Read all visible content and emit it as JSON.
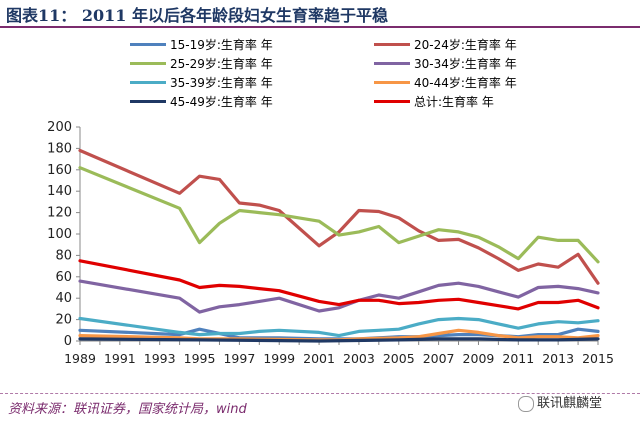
{
  "header": {
    "title": "图表11：  2011 年以后各年龄段妇女生育率趋于平稳"
  },
  "footer": {
    "source": "资料来源：联讯证券，国家统计局，wind",
    "watermark": "联讯麒麟堂"
  },
  "chart_data": {
    "type": "line",
    "x": [
      1989,
      1990,
      1991,
      1992,
      1993,
      1994,
      1995,
      1996,
      1997,
      1998,
      1999,
      2000,
      2001,
      2002,
      2003,
      2004,
      2005,
      2006,
      2007,
      2008,
      2009,
      2010,
      2011,
      2012,
      2013,
      2014,
      2015
    ],
    "xticks": [
      1989,
      1991,
      1993,
      1995,
      1997,
      1999,
      2001,
      2003,
      2005,
      2007,
      2009,
      2011,
      2013,
      2015
    ],
    "ylim": [
      0,
      200
    ],
    "yticks": [
      0,
      20,
      40,
      60,
      80,
      100,
      120,
      140,
      160,
      180,
      200
    ],
    "grid": false,
    "legend_position": "top",
    "series": [
      {
        "name": "15-19岁:生育率 年",
        "color": "#4f81bd",
        "points": [
          [
            1989,
            10
          ],
          [
            1994,
            6
          ],
          [
            1995,
            11
          ],
          [
            1996,
            7
          ],
          [
            1997,
            3
          ],
          [
            1999,
            3
          ],
          [
            2001,
            2
          ],
          [
            2002,
            2
          ],
          [
            2003,
            2
          ],
          [
            2005,
            4
          ],
          [
            2006,
            4
          ],
          [
            2007,
            5
          ],
          [
            2008,
            6
          ],
          [
            2009,
            6
          ],
          [
            2010,
            5
          ],
          [
            2011,
            4
          ],
          [
            2012,
            6
          ],
          [
            2013,
            6
          ],
          [
            2014,
            11
          ],
          [
            2015,
            9
          ]
        ]
      },
      {
        "name": "20-24岁:生育率 年",
        "color": "#c0504d",
        "points": [
          [
            1989,
            178
          ],
          [
            1994,
            138
          ],
          [
            1995,
            154
          ],
          [
            1996,
            151
          ],
          [
            1997,
            129
          ],
          [
            1998,
            127
          ],
          [
            1999,
            122
          ],
          [
            2001,
            89
          ],
          [
            2002,
            102
          ],
          [
            2003,
            122
          ],
          [
            2004,
            121
          ],
          [
            2005,
            115
          ],
          [
            2006,
            103
          ],
          [
            2007,
            94
          ],
          [
            2008,
            95
          ],
          [
            2009,
            87
          ],
          [
            2010,
            77
          ],
          [
            2011,
            66
          ],
          [
            2012,
            72
          ],
          [
            2013,
            69
          ],
          [
            2014,
            81
          ],
          [
            2015,
            54
          ]
        ]
      },
      {
        "name": "25-29岁:生育率 年",
        "color": "#9bbb59",
        "points": [
          [
            1989,
            162
          ],
          [
            1994,
            124
          ],
          [
            1995,
            92
          ],
          [
            1996,
            110
          ],
          [
            1997,
            122
          ],
          [
            1998,
            120
          ],
          [
            1999,
            118
          ],
          [
            2001,
            112
          ],
          [
            2002,
            99
          ],
          [
            2003,
            102
          ],
          [
            2004,
            107
          ],
          [
            2005,
            92
          ],
          [
            2006,
            98
          ],
          [
            2007,
            104
          ],
          [
            2008,
            102
          ],
          [
            2009,
            97
          ],
          [
            2010,
            88
          ],
          [
            2011,
            77
          ],
          [
            2012,
            97
          ],
          [
            2013,
            94
          ],
          [
            2014,
            94
          ],
          [
            2015,
            74
          ]
        ]
      },
      {
        "name": "30-34岁:生育率 年",
        "color": "#8064a2",
        "points": [
          [
            1989,
            56
          ],
          [
            1994,
            40
          ],
          [
            1995,
            27
          ],
          [
            1996,
            32
          ],
          [
            1997,
            34
          ],
          [
            1998,
            37
          ],
          [
            1999,
            40
          ],
          [
            2001,
            28
          ],
          [
            2002,
            31
          ],
          [
            2003,
            38
          ],
          [
            2004,
            43
          ],
          [
            2005,
            40
          ],
          [
            2006,
            46
          ],
          [
            2007,
            52
          ],
          [
            2008,
            54
          ],
          [
            2009,
            51
          ],
          [
            2010,
            46
          ],
          [
            2011,
            41
          ],
          [
            2012,
            50
          ],
          [
            2013,
            51
          ],
          [
            2014,
            49
          ],
          [
            2015,
            45
          ]
        ]
      },
      {
        "name": "35-39岁:生育率 年",
        "color": "#4bacc6",
        "points": [
          [
            1989,
            21
          ],
          [
            1994,
            8
          ],
          [
            1995,
            6
          ],
          [
            1996,
            7
          ],
          [
            1997,
            7
          ],
          [
            1998,
            9
          ],
          [
            1999,
            10
          ],
          [
            2001,
            8
          ],
          [
            2002,
            5
          ],
          [
            2003,
            9
          ],
          [
            2004,
            10
          ],
          [
            2005,
            11
          ],
          [
            2006,
            16
          ],
          [
            2007,
            20
          ],
          [
            2008,
            21
          ],
          [
            2009,
            20
          ],
          [
            2010,
            16
          ],
          [
            2011,
            12
          ],
          [
            2012,
            16
          ],
          [
            2013,
            18
          ],
          [
            2014,
            17
          ],
          [
            2015,
            19
          ]
        ]
      },
      {
        "name": "40-44岁:生育率 年",
        "color": "#f79646",
        "points": [
          [
            1989,
            5
          ],
          [
            1994,
            3
          ],
          [
            1995,
            2
          ],
          [
            1997,
            2
          ],
          [
            2001,
            1
          ],
          [
            2002,
            1
          ],
          [
            2003,
            2
          ],
          [
            2005,
            3
          ],
          [
            2006,
            4
          ],
          [
            2007,
            7
          ],
          [
            2008,
            10
          ],
          [
            2009,
            8
          ],
          [
            2010,
            5
          ],
          [
            2011,
            3
          ],
          [
            2012,
            4
          ],
          [
            2013,
            4
          ],
          [
            2014,
            3
          ],
          [
            2015,
            5
          ]
        ]
      },
      {
        "name": "45-49岁:生育率 年",
        "color": "#1f3864",
        "points": [
          [
            1989,
            2
          ],
          [
            1995,
            1
          ],
          [
            2001,
            0
          ],
          [
            2005,
            1
          ],
          [
            2007,
            2
          ],
          [
            2009,
            2
          ],
          [
            2011,
            1
          ],
          [
            2013,
            1
          ],
          [
            2015,
            2
          ]
        ]
      },
      {
        "name": "总计:生育率 年",
        "color": "#e00000",
        "points": [
          [
            1989,
            75
          ],
          [
            1994,
            57
          ],
          [
            1995,
            50
          ],
          [
            1996,
            52
          ],
          [
            1997,
            51
          ],
          [
            1998,
            49
          ],
          [
            1999,
            47
          ],
          [
            2001,
            37
          ],
          [
            2002,
            34
          ],
          [
            2003,
            38
          ],
          [
            2004,
            38
          ],
          [
            2005,
            35
          ],
          [
            2006,
            36
          ],
          [
            2007,
            38
          ],
          [
            2008,
            39
          ],
          [
            2009,
            36
          ],
          [
            2010,
            33
          ],
          [
            2011,
            30
          ],
          [
            2012,
            36
          ],
          [
            2013,
            36
          ],
          [
            2014,
            38
          ],
          [
            2015,
            31
          ]
        ]
      }
    ]
  }
}
